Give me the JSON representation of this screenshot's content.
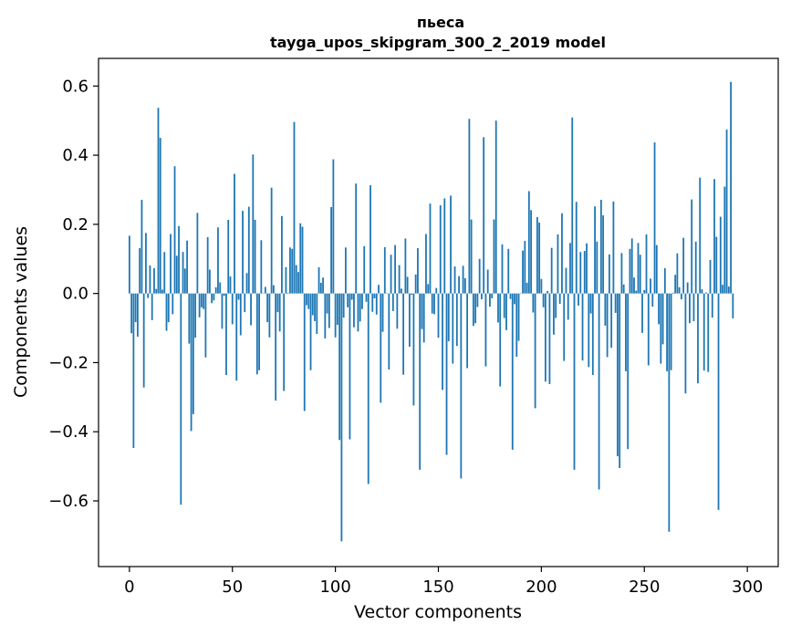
{
  "chart_data": {
    "type": "bar",
    "title": "пьеса",
    "subtitle": "tayga_upos_skipgram_300_2_2019 model",
    "xlabel": "Vector components",
    "ylabel": "Components values",
    "xlim": [
      -15,
      315
    ],
    "ylim": [
      -0.79,
      0.68
    ],
    "x_ticks": [
      0,
      50,
      100,
      150,
      200,
      250,
      300
    ],
    "x_tick_labels": [
      "0",
      "50",
      "100",
      "150",
      "200",
      "250",
      "300"
    ],
    "y_ticks": [
      -0.6,
      -0.4,
      -0.2,
      0.0,
      0.2,
      0.4,
      0.6
    ],
    "y_tick_labels": [
      "−0.6",
      "−0.4",
      "−0.2",
      "0.0",
      "0.2",
      "0.4",
      "0.6"
    ],
    "grid": false,
    "bar_color": "#1f77b4",
    "series": [
      {
        "values": [
          0.167,
          -0.115,
          -0.447,
          -0.083,
          -0.125,
          0.131,
          0.271,
          -0.272,
          0.175,
          -0.013,
          0.081,
          -0.077,
          0.073,
          0.013,
          0.537,
          0.45,
          0.011,
          0.12,
          -0.108,
          -0.083,
          0.172,
          -0.06,
          0.368,
          0.109,
          0.195,
          -0.611,
          0.12,
          0.072,
          0.153,
          -0.145,
          -0.398,
          -0.349,
          -0.128,
          0.233,
          -0.069,
          -0.04,
          -0.045,
          -0.185,
          0.163,
          0.069,
          -0.028,
          -0.02,
          0.018,
          0.191,
          0.032,
          -0.102,
          -0.007,
          -0.236,
          0.213,
          0.049,
          -0.089,
          0.346,
          -0.252,
          -0.018,
          -0.121,
          0.239,
          -0.054,
          0.059,
          0.251,
          -0.092,
          0.402,
          0.213,
          -0.234,
          -0.222,
          0.154,
          0.001,
          0.019,
          -0.083,
          -0.127,
          0.306,
          0.024,
          -0.31,
          -0.054,
          -0.11,
          0.224,
          -0.282,
          0.076,
          0.002,
          0.133,
          0.129,
          0.496,
          0.082,
          0.062,
          0.203,
          0.193,
          -0.34,
          -0.034,
          -0.045,
          -0.222,
          -0.063,
          -0.08,
          -0.117,
          0.076,
          0.031,
          0.046,
          -0.13,
          -0.058,
          -0.1,
          0.25,
          0.388,
          -0.127,
          -0.091,
          -0.424,
          -0.717,
          -0.07,
          0.133,
          -0.04,
          -0.422,
          -0.018,
          -0.098,
          0.318,
          -0.11,
          -0.081,
          -0.045,
          0.137,
          -0.024,
          -0.551,
          0.313,
          -0.053,
          -0.014,
          -0.061,
          0.025,
          -0.316,
          -0.111,
          0.134,
          0.001,
          -0.22,
          0.112,
          -0.051,
          0.14,
          -0.102,
          0.082,
          0.014,
          -0.235,
          0.159,
          0.048,
          -0.154,
          -0.004,
          -0.324,
          0.055,
          0.131,
          -0.51,
          -0.103,
          -0.142,
          0.172,
          0.027,
          0.26,
          -0.058,
          -0.06,
          0.016,
          -0.128,
          0.255,
          -0.279,
          0.275,
          -0.467,
          -0.138,
          0.283,
          -0.203,
          0.078,
          -0.152,
          0.05,
          -0.535,
          0.08,
          0.044,
          -0.216,
          0.505,
          0.214,
          -0.094,
          -0.086,
          -0.039,
          0.1,
          -0.017,
          0.452,
          -0.211,
          0.069,
          -0.038,
          -0.014,
          0.214,
          0.5,
          -0.084,
          -0.269,
          0.142,
          -0.071,
          -0.106,
          0.129,
          -0.016,
          -0.452,
          -0.031,
          -0.183,
          -0.137,
          0.001,
          0.124,
          0.152,
          0.031,
          0.296,
          0.241,
          -0.055,
          -0.332,
          0.221,
          0.205,
          0.042,
          -0.04,
          -0.255,
          0.007,
          -0.262,
          0.132,
          -0.119,
          -0.071,
          0.171,
          -0.03,
          0.232,
          -0.195,
          0.074,
          -0.076,
          0.146,
          0.509,
          -0.51,
          0.265,
          -0.035,
          0.12,
          -0.194,
          0.123,
          0.145,
          -0.213,
          -0.058,
          -0.236,
          0.252,
          0.15,
          -0.567,
          0.271,
          0.226,
          -0.093,
          -0.184,
          0.113,
          -0.157,
          0.266,
          -0.056,
          -0.471,
          -0.505,
          0.117,
          0.026,
          -0.225,
          -0.45,
          0.129,
          0.159,
          0.046,
          0.008,
          0.146,
          0.112,
          -0.114,
          0.01,
          0.171,
          -0.208,
          0.043,
          -0.038,
          0.437,
          0.14,
          -0.089,
          -0.203,
          -0.147,
          0.073,
          -0.225,
          -0.689,
          -0.222,
          0.002,
          0.054,
          0.116,
          0.018,
          -0.017,
          0.161,
          -0.289,
          0.032,
          -0.086,
          0.272,
          -0.08,
          0.15,
          -0.26,
          0.335,
          0.012,
          -0.223,
          0.003,
          -0.227,
          0.097,
          -0.07,
          0.331,
          0.164,
          -0.626,
          0.222,
          0.025,
          0.309,
          0.474,
          0.02,
          0.612,
          -0.072
        ]
      }
    ]
  }
}
